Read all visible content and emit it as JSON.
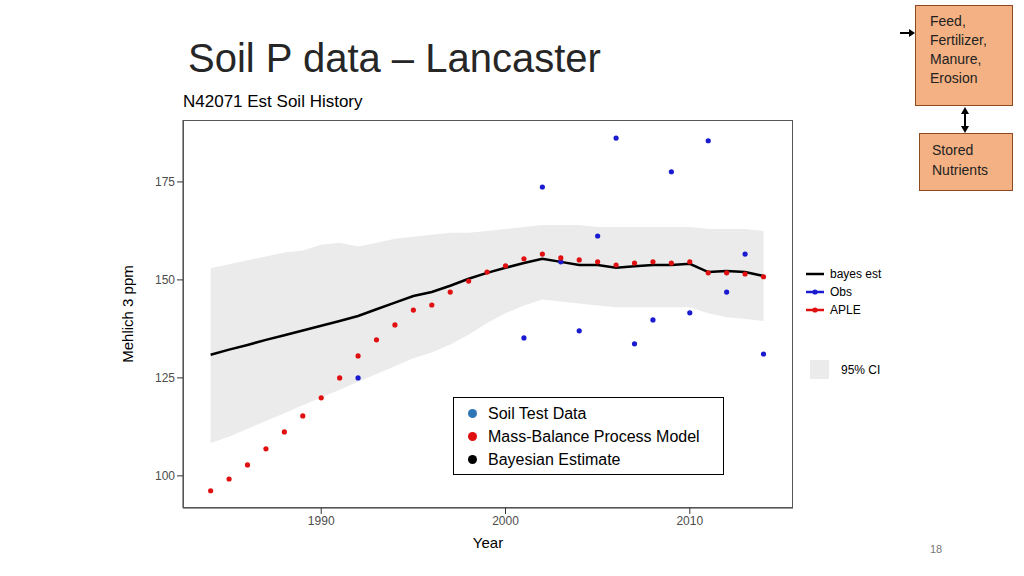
{
  "slide": {
    "title": "Soil P data – Lancaster",
    "page": "18"
  },
  "diagram": {
    "boxes": [
      "Feed,\nFertilizer,\nManure,\nErosion",
      "Stored\nNutrients"
    ]
  },
  "chart_data": {
    "type": "line",
    "title": "N42071 Est Soil History",
    "x_label": "Year",
    "y_label": "Mehlich 3 ppm",
    "xlim": [
      1982.5,
      2015.6
    ],
    "xticks": [
      1990,
      2000,
      2010
    ],
    "ylim": [
      91.8,
      190.8
    ],
    "yticks": [
      100,
      125,
      150,
      175
    ],
    "grid": false,
    "x": [
      1984,
      1985,
      1986,
      1987,
      1988,
      1989,
      1990,
      1991,
      1992,
      1993,
      1994,
      1995,
      1996,
      1997,
      1998,
      1999,
      2000,
      2001,
      2002,
      2003,
      2004,
      2005,
      2006,
      2007,
      2008,
      2009,
      2010,
      2011,
      2012,
      2013,
      2014
    ],
    "series": [
      {
        "name": "95% CI",
        "type": "band",
        "color": "#ebebeb",
        "lower": [
          108.4,
          110,
          112,
          114,
          116,
          118,
          120,
          122,
          124,
          126,
          128,
          130,
          131.5,
          133.5,
          136,
          139,
          141.5,
          143.5,
          145,
          144.5,
          144,
          143.5,
          143,
          143,
          143,
          143,
          143,
          141.5,
          140.5,
          140,
          139.5
        ],
        "upper": [
          153,
          154,
          155,
          156,
          157,
          157.5,
          159,
          159.5,
          158.5,
          159.5,
          160.5,
          161,
          161.5,
          162,
          162,
          162.5,
          163,
          163.5,
          164,
          164,
          164,
          163.5,
          163.5,
          163.5,
          163.5,
          163.5,
          163.5,
          163,
          163,
          163,
          162.5
        ]
      },
      {
        "name": "bayes est",
        "type": "line",
        "color": "#000000",
        "values": [
          130.9,
          132.2,
          133.4,
          134.7,
          135.9,
          137.1,
          138.3,
          139.5,
          140.8,
          142.5,
          144.2,
          145.9,
          146.9,
          148.5,
          150.3,
          151.8,
          153.1,
          154.3,
          155.4,
          154.6,
          153.8,
          153.8,
          153.1,
          153.5,
          153.8,
          153.8,
          154.1,
          152.0,
          152.3,
          152.0,
          151.0
        ]
      },
      {
        "name": "Obs",
        "type": "scatter",
        "marker": "circle",
        "color": "#1a1ad0",
        "x": [
          1992,
          2001,
          2002,
          2003,
          2004,
          2005,
          2006,
          2007,
          2008,
          2009,
          2010,
          2011,
          2012,
          2013,
          2014
        ],
        "values": [
          125.0,
          135.2,
          173.7,
          154.6,
          137.0,
          161.2,
          186.2,
          133.7,
          139.8,
          177.6,
          141.6,
          185.5,
          146.9,
          156.6,
          131.1
        ]
      },
      {
        "name": "APLE",
        "type": "scatter",
        "marker": "circle",
        "color": "#e01010",
        "values": [
          96.2,
          99.2,
          102.8,
          106.9,
          111.2,
          115.3,
          119.9,
          125.0,
          130.6,
          134.7,
          138.5,
          142.3,
          143.6,
          146.9,
          149.7,
          152.0,
          153.6,
          155.4,
          156.6,
          155.6,
          155.1,
          154.6,
          153.8,
          154.3,
          154.6,
          154.3,
          154.6,
          151.8,
          151.8,
          151.5,
          150.8
        ]
      }
    ],
    "annotations": [
      {
        "text": "Soil Test Data",
        "color": "#2e75b6"
      },
      {
        "text": "Mass-Balance Process Model",
        "color": "#e01010"
      },
      {
        "text": "Bayesian Estimate",
        "color": "#000000"
      }
    ]
  }
}
